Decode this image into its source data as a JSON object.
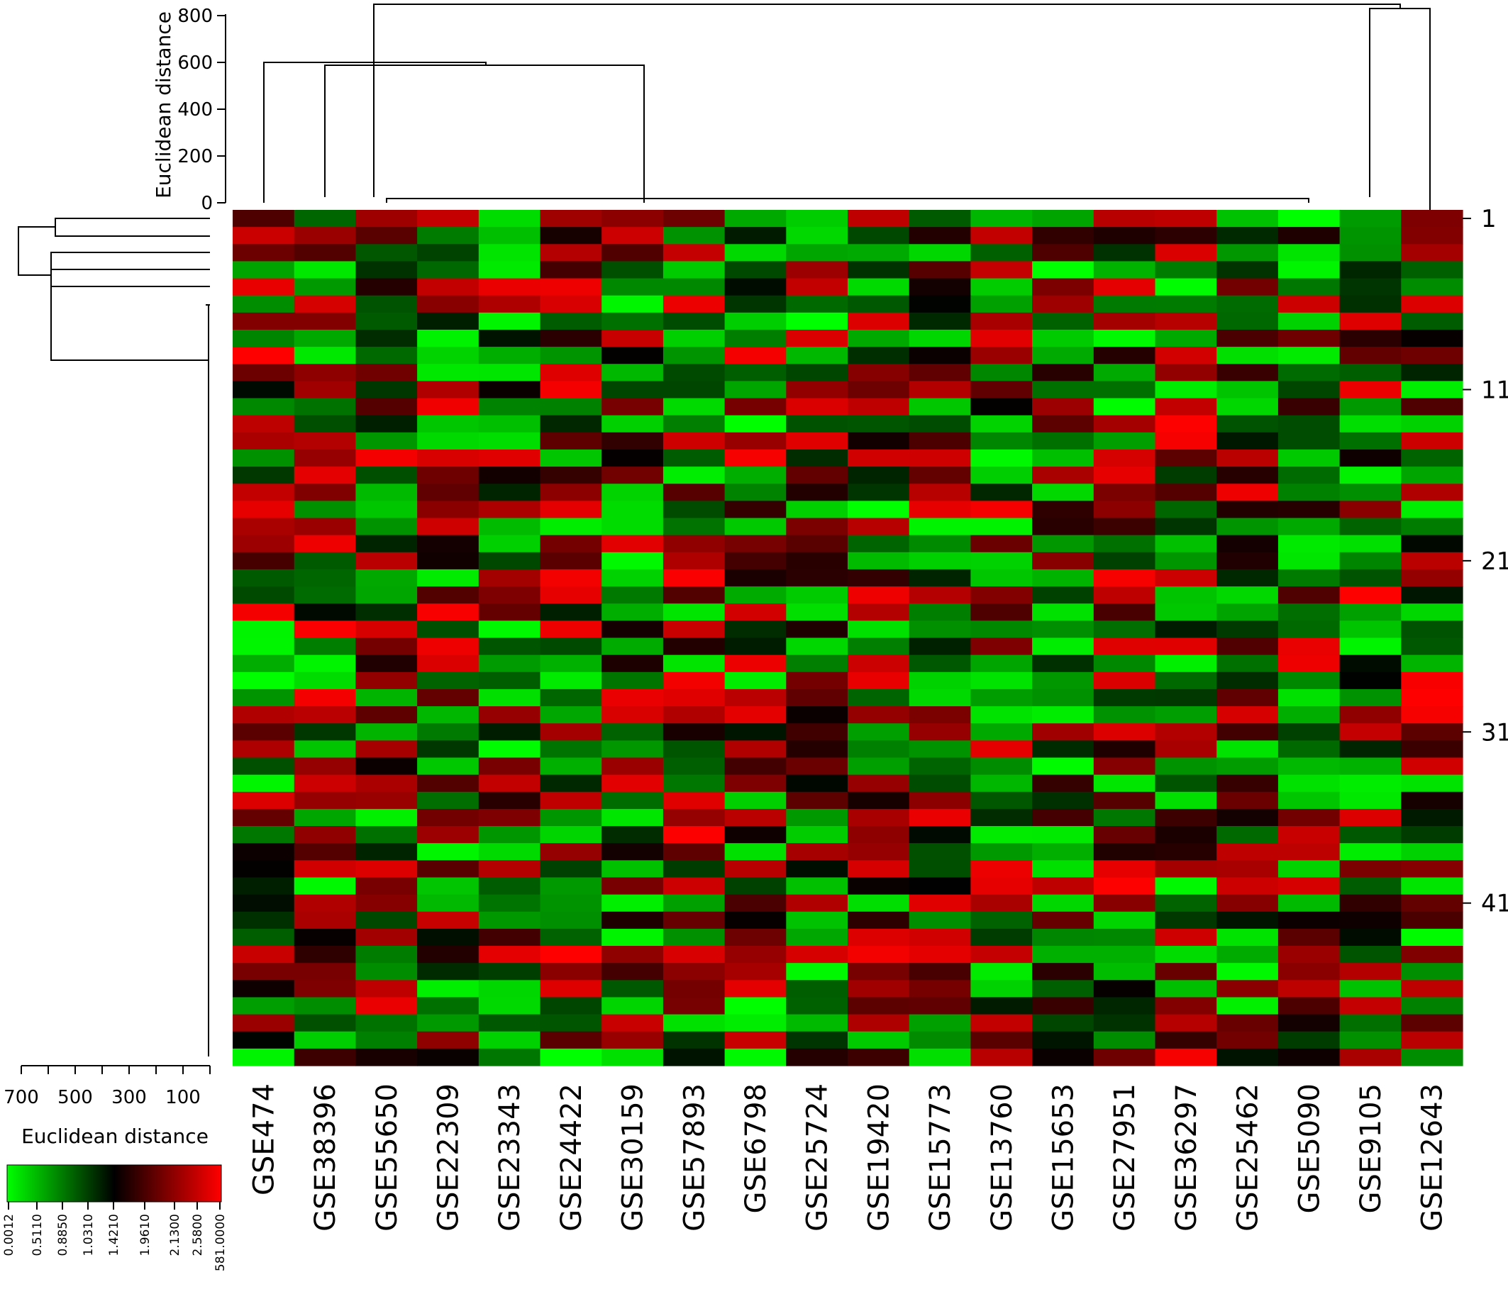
{
  "chart_data": {
    "type": "heatmap",
    "columns": [
      "GSE474",
      "GSE38396",
      "GSE55650",
      "GSE22309",
      "GSE23343",
      "GSE24422",
      "GSE30159",
      "GSE57893",
      "GSE6798",
      "GSE25724",
      "GSE19420",
      "GSE15773",
      "GSE13760",
      "GSE15653",
      "GSE27951",
      "GSE36297",
      "GSE25462",
      "GSE5090",
      "GSE9105",
      "GSE12643"
    ],
    "row_count": 50,
    "row_ticks": [
      {
        "row": 1,
        "label": "1"
      },
      {
        "row": 11,
        "label": "11"
      },
      {
        "row": 21,
        "label": "21"
      },
      {
        "row": 31,
        "label": "31"
      },
      {
        "row": 41,
        "label": "41"
      }
    ],
    "top_dendrogram": {
      "ylabel": "Euclidean distance",
      "yticks": [
        0,
        200,
        400,
        600,
        800
      ],
      "ylim": [
        0,
        870
      ]
    },
    "left_dendrogram": {
      "xlabel": "Euclidean distance",
      "xtick_labels": [
        "700",
        "500",
        "300",
        "100"
      ],
      "xlim": [
        780,
        0
      ]
    },
    "color_key": {
      "colors": [
        "#00ff00",
        "#000000",
        "#ff0000"
      ],
      "tick_labels": [
        "0.0012",
        "0.5110",
        "0.8850",
        "1.0310",
        "1.4210",
        "1.9610",
        "2.1300",
        "2.5800",
        "581.0000"
      ]
    },
    "heatmap_palette": {
      "low": "#00ff00",
      "mid": "#000000",
      "high": "#ff0000"
    }
  }
}
